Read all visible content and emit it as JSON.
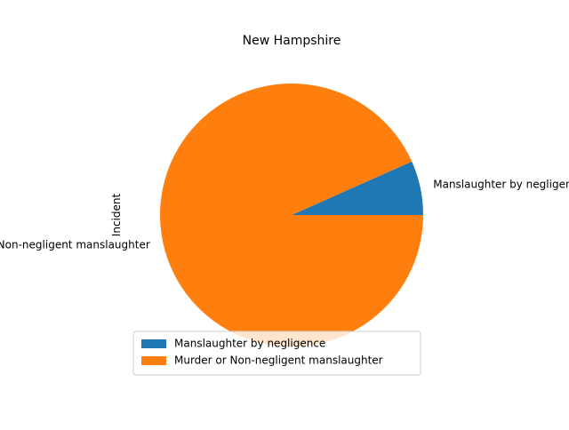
{
  "chart_data": {
    "type": "pie",
    "title": "New Hampshire",
    "ylabel": "Incident",
    "labels": [
      "Manslaughter by negligence",
      "Murder or Non-negligent manslaughter"
    ],
    "values": [
      1,
      14
    ],
    "colors": [
      "#1f77b4",
      "#ff7f0e"
    ],
    "legend": {
      "placement": "lower-center",
      "entries": [
        "Manslaughter by negligence",
        "Murder or Non-negligent manslaughter"
      ]
    }
  }
}
